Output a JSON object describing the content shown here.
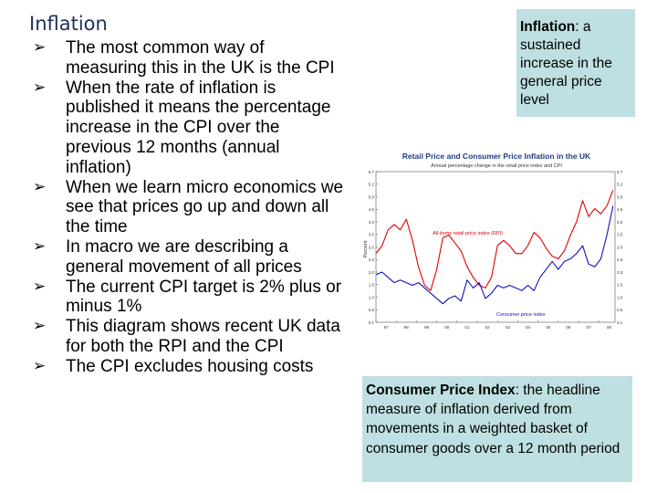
{
  "slide": {
    "title": "Inflation",
    "bullets": [
      "The most common way of measuring this in the UK is the CPI",
      "When the rate of inflation is published it means the percentage increase in the CPI over the previous 12 months (annual inflation)",
      "When we learn micro economics we see that prices go up and down all the time",
      "In macro we are describing a general movement of all prices",
      "The current CPI target is 2% plus or minus 1%",
      "This diagram shows recent UK data for both the RPI and the CPI",
      "The CPI excludes housing costs"
    ],
    "bullet_icon": "arrow-bullet-icon"
  },
  "definitions": {
    "inflation_term": "Inflation",
    "inflation_text": ": a sustained increase in the general price level",
    "cpi_term": "Consumer Price Index",
    "cpi_text": ": the headline measure of inflation derived from movements in a weighted basket of consumer goods over a 12 month period"
  },
  "colors": {
    "title": "#1f2f5a",
    "box_bg": "#bfe0e2",
    "rpi": "#e00000",
    "cpi": "#1010c0"
  },
  "chart_data": {
    "type": "line",
    "title": "Retail Price and Consumer Price Inflation in the UK",
    "subtitle": "Annual percentage change in the retail price index and CPI",
    "ylabel": "Percent",
    "x_ticks": [
      "97",
      "98",
      "99",
      "00",
      "01",
      "02",
      "03",
      "04",
      "05",
      "06",
      "07",
      "08"
    ],
    "y_ticks": [
      "0.1",
      "0.5",
      "1.0",
      "1.5",
      "2.0",
      "2.5",
      "3.0",
      "3.5",
      "4.0",
      "4.5",
      "5.0",
      "5.2",
      "5.7"
    ],
    "xlim": [
      1997,
      2008.8
    ],
    "ylim": [
      0,
      5.7
    ],
    "grid": false,
    "series": [
      {
        "name": "All-items retail price index (RPI)",
        "color": "#e00000",
        "x": [
          1997.0,
          1997.3,
          1997.6,
          1997.9,
          1998.2,
          1998.5,
          1998.8,
          1999.1,
          1999.4,
          1999.7,
          2000.0,
          2000.3,
          2000.6,
          2000.9,
          2001.2,
          2001.5,
          2001.8,
          2002.1,
          2002.4,
          2002.7,
          2003.0,
          2003.3,
          2003.6,
          2003.9,
          2004.2,
          2004.5,
          2004.8,
          2005.1,
          2005.4,
          2005.7,
          2006.0,
          2006.3,
          2006.6,
          2006.9,
          2007.2,
          2007.5,
          2007.8,
          2008.1,
          2008.4,
          2008.7
        ],
        "y": [
          2.6,
          2.9,
          3.5,
          3.7,
          3.5,
          3.9,
          3.1,
          2.1,
          1.4,
          1.2,
          2.0,
          3.2,
          3.3,
          3.0,
          2.7,
          2.1,
          1.7,
          1.4,
          1.3,
          1.7,
          2.9,
          3.1,
          2.9,
          2.6,
          2.6,
          2.9,
          3.4,
          3.2,
          2.8,
          2.5,
          2.4,
          2.7,
          3.3,
          3.8,
          4.6,
          4.0,
          4.3,
          4.1,
          4.4,
          5.0
        ]
      },
      {
        "name": "Consumer price index",
        "color": "#1010c0",
        "x": [
          1997.0,
          1997.3,
          1997.6,
          1997.9,
          1998.2,
          1998.5,
          1998.8,
          1999.1,
          1999.4,
          1999.7,
          2000.0,
          2000.3,
          2000.6,
          2000.9,
          2001.2,
          2001.5,
          2001.8,
          2002.1,
          2002.4,
          2002.7,
          2003.0,
          2003.3,
          2003.6,
          2003.9,
          2004.2,
          2004.5,
          2004.8,
          2005.1,
          2005.4,
          2005.7,
          2006.0,
          2006.3,
          2006.6,
          2006.9,
          2007.2,
          2007.5,
          2007.8,
          2008.1,
          2008.4,
          2008.7
        ],
        "y": [
          1.8,
          1.9,
          1.7,
          1.5,
          1.6,
          1.5,
          1.4,
          1.5,
          1.3,
          1.1,
          0.9,
          0.7,
          0.9,
          1.0,
          0.8,
          1.6,
          1.3,
          1.5,
          0.9,
          1.1,
          1.4,
          1.3,
          1.4,
          1.3,
          1.2,
          1.4,
          1.2,
          1.7,
          2.0,
          2.3,
          2.0,
          2.3,
          2.4,
          2.6,
          2.9,
          2.2,
          2.1,
          2.4,
          3.3,
          4.4
        ]
      }
    ]
  }
}
